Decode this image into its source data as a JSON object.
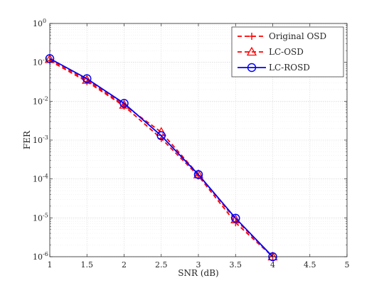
{
  "chart_data": {
    "type": "line",
    "title": "",
    "xlabel": "SNR (dB)",
    "ylabel": "FER",
    "xlim": [
      1,
      5
    ],
    "ylim": [
      1e-06,
      1
    ],
    "yscale": "log",
    "grid": true,
    "legend_position": "top-right",
    "x_ticks": [
      "1",
      "1.5",
      "2",
      "2.5",
      "3",
      "3.5",
      "4",
      "4.5",
      "5"
    ],
    "x_tick_values": [
      1,
      1.5,
      2,
      2.5,
      3,
      3.5,
      4,
      4.5,
      5
    ],
    "y_ticks": [
      {
        "base": "10",
        "exp": "0",
        "value": 1
      },
      {
        "base": "10",
        "exp": "-1",
        "value": 0.1
      },
      {
        "base": "10",
        "exp": "-2",
        "value": 0.01
      },
      {
        "base": "10",
        "exp": "-3",
        "value": 0.001
      },
      {
        "base": "10",
        "exp": "-4",
        "value": 0.0001
      },
      {
        "base": "10",
        "exp": "-5",
        "value": 1e-05
      },
      {
        "base": "10",
        "exp": "-6",
        "value": 1e-06
      }
    ],
    "x": [
      1,
      1.5,
      2,
      2.5,
      3,
      3.5,
      4
    ],
    "series": [
      {
        "name": "Original OSD",
        "color": "#ff0000",
        "line": "dashed",
        "marker": "plus",
        "values": [
          0.11,
          0.032,
          0.0075,
          0.0011,
          0.00012,
          7.5e-06,
          1e-06
        ]
      },
      {
        "name": "LC-OSD",
        "color": "#ff0000",
        "line": "dashed",
        "marker": "triangle",
        "values": [
          0.12,
          0.035,
          0.008,
          0.0016,
          0.00013,
          9e-06,
          1e-06
        ]
      },
      {
        "name": "LC-ROSD",
        "color": "#0000ff",
        "line": "solid",
        "marker": "circle",
        "values": [
          0.125,
          0.038,
          0.0088,
          0.0013,
          0.00013,
          9.8e-06,
          1e-06
        ]
      }
    ]
  }
}
